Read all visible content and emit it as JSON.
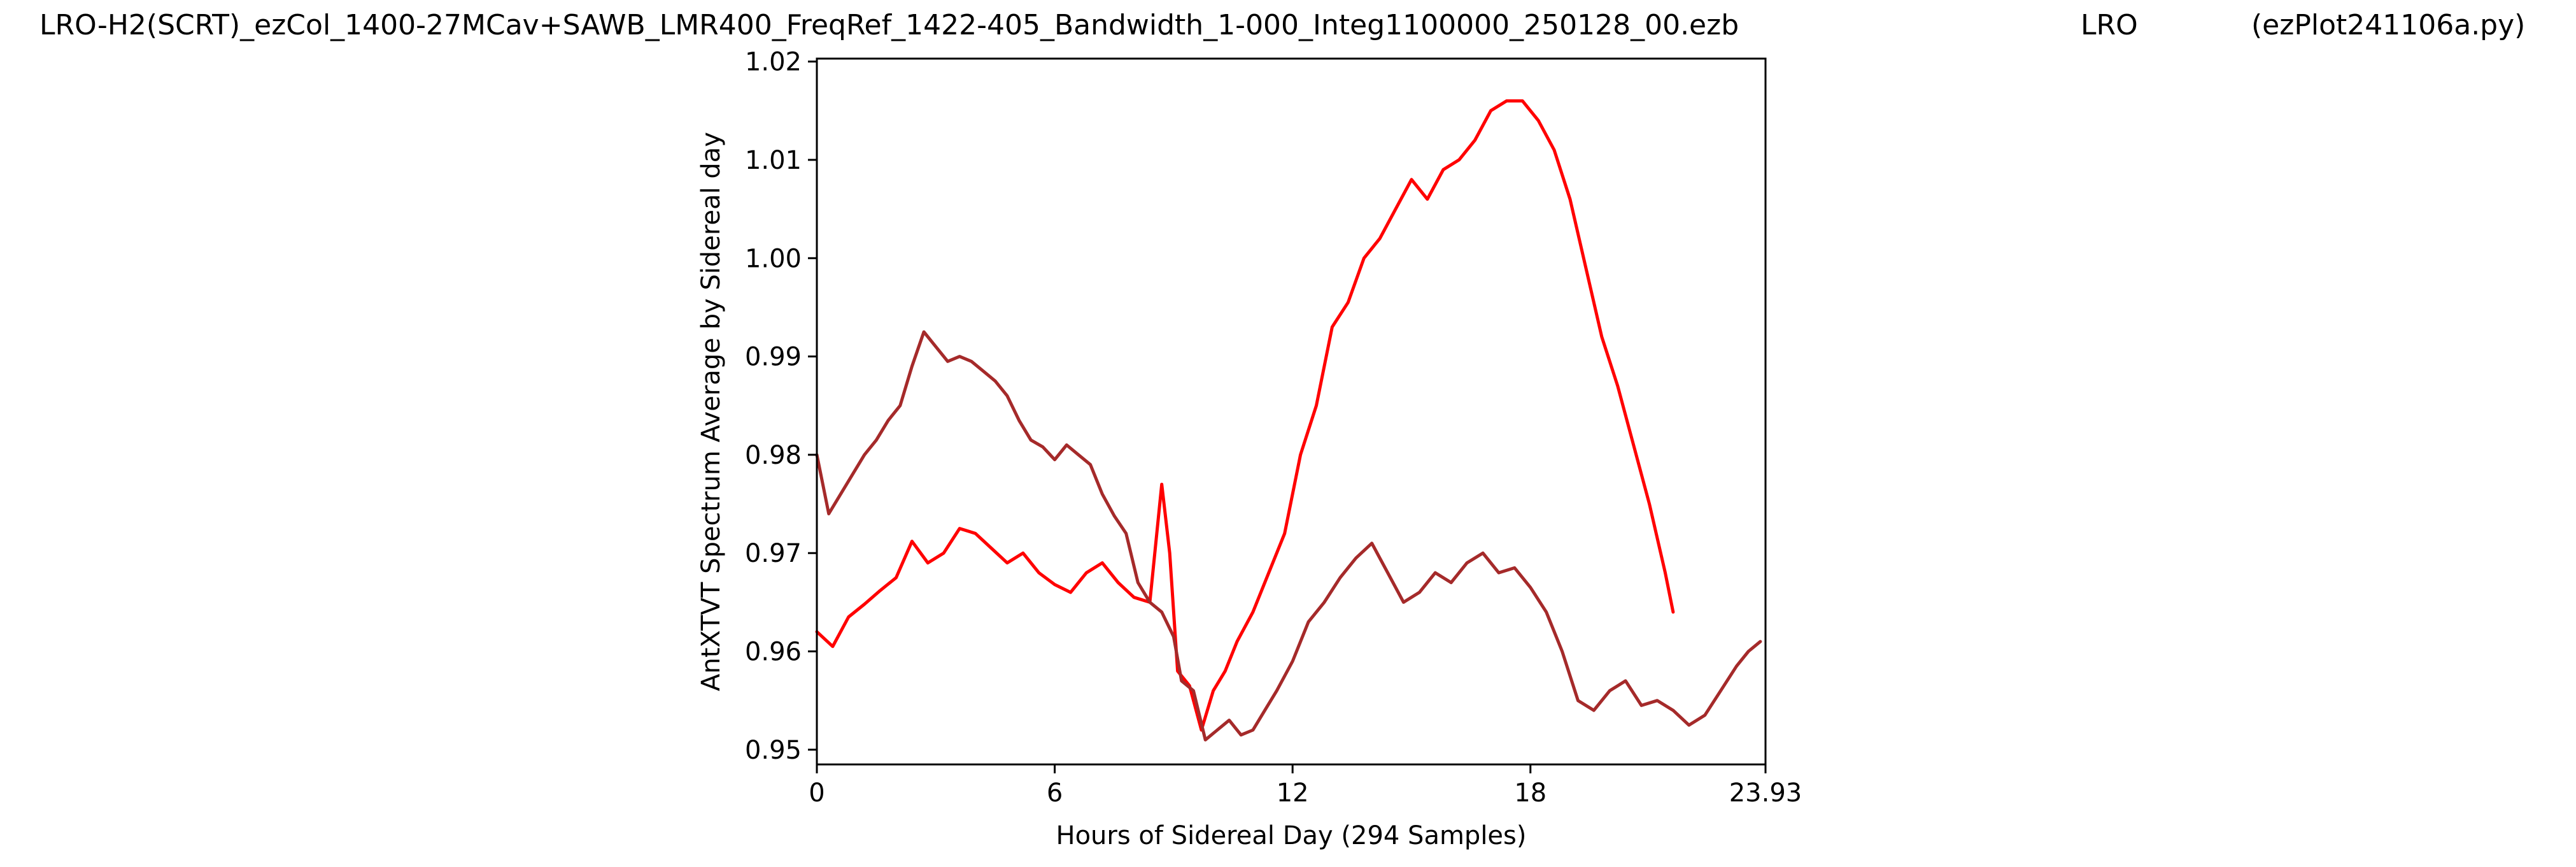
{
  "header": {
    "title": "LRO-H2(SCRT)_ezCol_1400-27MCav+SAWB_LMR400_FreqRef_1422-405_Bandwidth_1-000_Integ1100000_250128_00.ezb",
    "site": "LRO",
    "script": "(ezPlot241106a.py)"
  },
  "chart_data": {
    "type": "line",
    "title": "",
    "xlabel": "Hours of Sidereal Day  (294 Samples)",
    "ylabel": "AntXTVT Spectrum Average by Sidereal day",
    "xlim": [
      0,
      23.93
    ],
    "ylim": [
      0.9485,
      1.0203
    ],
    "xticks": [
      0,
      6,
      12,
      18,
      23.93
    ],
    "xtick_labels": [
      "0",
      "6",
      "12",
      "18",
      "23.93"
    ],
    "yticks": [
      0.95,
      0.96,
      0.97,
      0.98,
      0.99,
      1.0,
      1.01,
      1.02
    ],
    "ytick_labels": [
      "0.95",
      "0.96",
      "0.97",
      "0.98",
      "0.99",
      "1.00",
      "1.01",
      "1.02"
    ],
    "grid": false,
    "legend": "none",
    "series": [
      {
        "color": "#ff0000",
        "x": [
          0,
          0.4,
          0.8,
          1.2,
          1.6,
          2.0,
          2.4,
          2.8,
          3.2,
          3.6,
          4.0,
          4.4,
          4.8,
          5.2,
          5.6,
          6.0,
          6.4,
          6.8,
          7.2,
          7.6,
          8.0,
          8.4,
          8.7,
          8.9,
          9.1,
          9.4,
          9.7,
          10.0,
          10.3,
          10.6,
          11.0,
          11.4,
          11.8,
          12.2,
          12.6,
          13.0,
          13.4,
          13.8,
          14.2,
          14.6,
          15.0,
          15.4,
          15.8,
          16.2,
          16.6,
          17.0,
          17.4,
          17.8,
          18.2,
          18.6,
          19.0,
          19.4,
          19.8,
          20.2,
          20.6,
          21.0,
          21.4,
          21.6
        ],
        "y": [
          0.962,
          0.9605,
          0.9635,
          0.9648,
          0.9662,
          0.9675,
          0.9712,
          0.969,
          0.97,
          0.9725,
          0.972,
          0.9705,
          0.969,
          0.97,
          0.968,
          0.9668,
          0.966,
          0.968,
          0.969,
          0.967,
          0.9655,
          0.965,
          0.977,
          0.97,
          0.958,
          0.9565,
          0.952,
          0.956,
          0.958,
          0.961,
          0.964,
          0.968,
          0.972,
          0.98,
          0.985,
          0.993,
          0.9955,
          1.0,
          1.002,
          1.005,
          1.008,
          1.006,
          1.009,
          1.01,
          1.012,
          1.015,
          1.016,
          1.016,
          1.014,
          1.011,
          1.006,
          0.999,
          0.992,
          0.987,
          0.981,
          0.975,
          0.968,
          0.964
        ]
      },
      {
        "color": "#a52a2a",
        "x": [
          0,
          0.3,
          0.6,
          0.9,
          1.2,
          1.5,
          1.8,
          2.1,
          2.4,
          2.7,
          3.0,
          3.3,
          3.6,
          3.9,
          4.2,
          4.5,
          4.8,
          5.1,
          5.4,
          5.7,
          6.0,
          6.3,
          6.6,
          6.9,
          7.2,
          7.5,
          7.8,
          8.1,
          8.4,
          8.7,
          9.0,
          9.2,
          9.5,
          9.8,
          10.1,
          10.4,
          10.7,
          11.0,
          11.3,
          11.6,
          12.0,
          12.4,
          12.8,
          13.2,
          13.6,
          14.0,
          14.4,
          14.8,
          15.2,
          15.6,
          16.0,
          16.4,
          16.8,
          17.2,
          17.6,
          18.0,
          18.4,
          18.8,
          19.2,
          19.6,
          20.0,
          20.4,
          20.8,
          21.2,
          21.6,
          22.0,
          22.4,
          22.8,
          23.2,
          23.5,
          23.8
        ],
        "y": [
          0.98,
          0.974,
          0.976,
          0.978,
          0.98,
          0.9815,
          0.9835,
          0.985,
          0.989,
          0.9925,
          0.991,
          0.9895,
          0.99,
          0.9895,
          0.9885,
          0.9875,
          0.986,
          0.9835,
          0.9815,
          0.9808,
          0.9795,
          0.981,
          0.98,
          0.979,
          0.976,
          0.9738,
          0.972,
          0.967,
          0.965,
          0.964,
          0.9615,
          0.957,
          0.956,
          0.951,
          0.952,
          0.953,
          0.9515,
          0.952,
          0.954,
          0.956,
          0.959,
          0.963,
          0.965,
          0.9675,
          0.9695,
          0.971,
          0.968,
          0.965,
          0.966,
          0.968,
          0.967,
          0.969,
          0.97,
          0.968,
          0.9685,
          0.9665,
          0.964,
          0.96,
          0.955,
          0.954,
          0.956,
          0.957,
          0.9545,
          0.955,
          0.954,
          0.9525,
          0.9535,
          0.956,
          0.9585,
          0.96,
          0.961
        ]
      }
    ]
  }
}
